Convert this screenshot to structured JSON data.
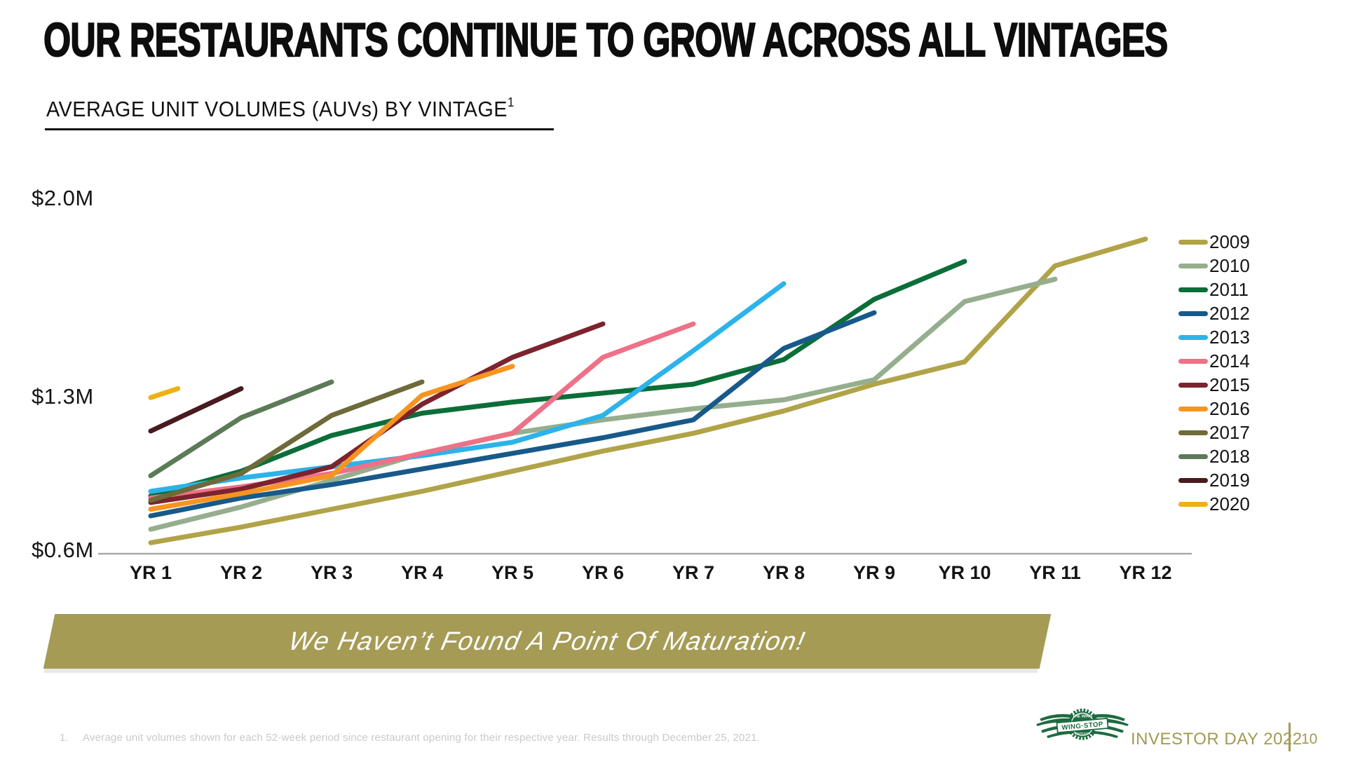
{
  "slide": {
    "title": "OUR RESTAURANTS CONTINUE TO GROW ACROSS ALL VINTAGES",
    "subtitle": "AVERAGE UNIT VOLUMES (AUVs) BY VINTAGE",
    "subtitle_superscript": "1",
    "banner": "We Haven’t Found A Point Of Maturation!",
    "footnote_number": "1.",
    "footnote": "Average unit volumes shown for each 52-week period since restaurant opening for their respective year. Results through December 25, 2021.",
    "footer_brand": "INVESTOR DAY 2022",
    "page_number": "10",
    "logo_text": "WING·STOP",
    "logo_text_top": "THE WING",
    "logo_text_bottom": "EXPERTS"
  },
  "colors": {
    "banner_bg": "#a69b55",
    "footer_accent": "#a39a52",
    "logo_green": "#1d6b40",
    "axis_line": "#a9a9a9",
    "footnote_gray": "#c9c9c9",
    "text_black": "#141414"
  },
  "chart_data": {
    "type": "line",
    "title": "AVERAGE UNIT VOLUMES (AUVs) BY VINTAGE",
    "unit": "millions USD",
    "grid": "off",
    "legend_position": "right",
    "x_categories": [
      "YR 1",
      "YR 2",
      "YR 3",
      "YR 4",
      "YR 5",
      "YR 6",
      "YR 7",
      "YR 8",
      "YR 9",
      "YR 10",
      "YR 11",
      "YR 12"
    ],
    "y_axis": {
      "ticks": [
        "$2.0M",
        "$1.3M",
        "$0.6M"
      ],
      "min_musd": 0.6,
      "max_musd": 2.0
    },
    "series": [
      {
        "name": "2009",
        "color": "#b1a348",
        "values": [
          0.64,
          0.71,
          0.79,
          0.87,
          0.96,
          1.05,
          1.13,
          1.23,
          1.35,
          1.45,
          1.88,
          2.0
        ]
      },
      {
        "name": "2010",
        "color": "#95ae8e",
        "values": [
          0.7,
          0.8,
          0.92,
          1.04,
          1.13,
          1.19,
          1.24,
          1.28,
          1.37,
          1.72,
          1.82
        ]
      },
      {
        "name": "2011",
        "color": "#0b6e38",
        "values": [
          0.85,
          0.96,
          1.12,
          1.22,
          1.27,
          1.31,
          1.35,
          1.46,
          1.73,
          1.9
        ]
      },
      {
        "name": "2012",
        "color": "#175a8a",
        "values": [
          0.76,
          0.84,
          0.9,
          0.97,
          1.04,
          1.11,
          1.19,
          1.51,
          1.67
        ]
      },
      {
        "name": "2013",
        "color": "#2cb3ea",
        "values": [
          0.87,
          0.93,
          0.98,
          1.03,
          1.09,
          1.21,
          1.5,
          1.8
        ]
      },
      {
        "name": "2014",
        "color": "#ee7187",
        "values": [
          0.84,
          0.89,
          0.95,
          1.04,
          1.13,
          1.47,
          1.62
        ]
      },
      {
        "name": "2015",
        "color": "#7c232e",
        "values": [
          0.82,
          0.88,
          0.98,
          1.26,
          1.47,
          1.62
        ]
      },
      {
        "name": "2016",
        "color": "#f79421",
        "values": [
          0.79,
          0.86,
          0.94,
          1.3,
          1.43
        ]
      },
      {
        "name": "2017",
        "color": "#6e6a39",
        "values": [
          0.83,
          0.95,
          1.21,
          1.36
        ]
      },
      {
        "name": "2018",
        "color": "#5c7a57",
        "values": [
          0.94,
          1.2,
          1.36
        ]
      },
      {
        "name": "2019",
        "color": "#491a1e",
        "values": [
          1.14,
          1.33
        ]
      },
      {
        "name": "2020",
        "color": "#eeb111",
        "values": [
          1.29,
          1.33
        ],
        "x": [
          1,
          1.3
        ],
        "note": "partial data through Dec 25, 2021"
      }
    ]
  }
}
